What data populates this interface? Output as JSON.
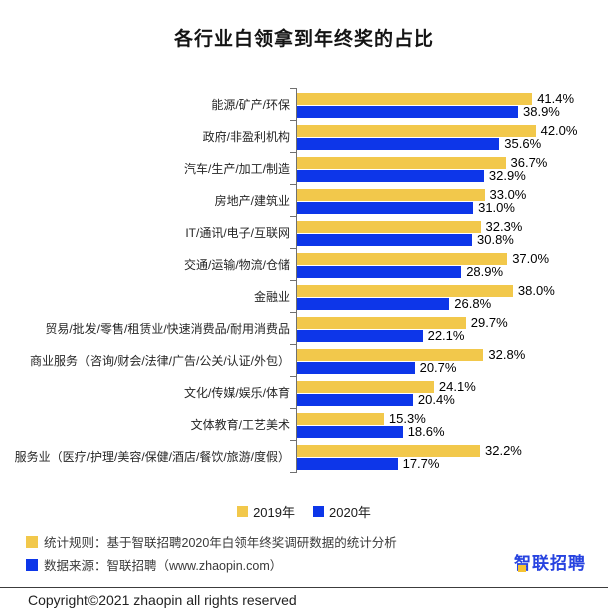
{
  "title": "各行业白领拿到年终奖的占比",
  "chart_data": {
    "type": "bar",
    "orientation": "horizontal",
    "unit": "%",
    "xlim": [
      0,
      44
    ],
    "grid": false,
    "legend_position": "bottom",
    "value_labels": true,
    "categories": [
      "能源/矿产/环保",
      "政府/非盈利机构",
      "汽车/生产/加工/制造",
      "房地产/建筑业",
      "IT/通讯/电子/互联网",
      "交通/运输/物流/仓储",
      "金融业",
      "贸易/批发/零售/租赁业/快速消费品/耐用消费品",
      "商业服务（咨询/财会/法律/广告/公关/认证/外包）",
      "文化/传媒/娱乐/体育",
      "文体教育/工艺美术",
      "服务业（医疗/护理/美容/保健/酒店/餐饮/旅游/度假）"
    ],
    "series": [
      {
        "name": "2019年",
        "color": "#F2C84B",
        "values": [
          41.4,
          42.0,
          36.7,
          33.0,
          32.3,
          37.0,
          38.0,
          29.7,
          32.8,
          24.1,
          15.3,
          32.2
        ]
      },
      {
        "name": "2020年",
        "color": "#0D36E9",
        "values": [
          38.9,
          35.6,
          32.9,
          31.0,
          30.8,
          28.9,
          26.8,
          22.1,
          20.7,
          20.4,
          18.6,
          17.7
        ]
      }
    ]
  },
  "footnotes": [
    {
      "swatch_color": "#F2C84B",
      "text": "统计规则：基于智联招聘2020年白领年终奖调研数据的统计分析"
    },
    {
      "swatch_color": "#0D36E9",
      "text": "数据来源：智联招聘（www.zhaopin.com）"
    }
  ],
  "logo_text": "智联招聘",
  "copyright": "Copyright©2021 zhaopin all rights reserved"
}
